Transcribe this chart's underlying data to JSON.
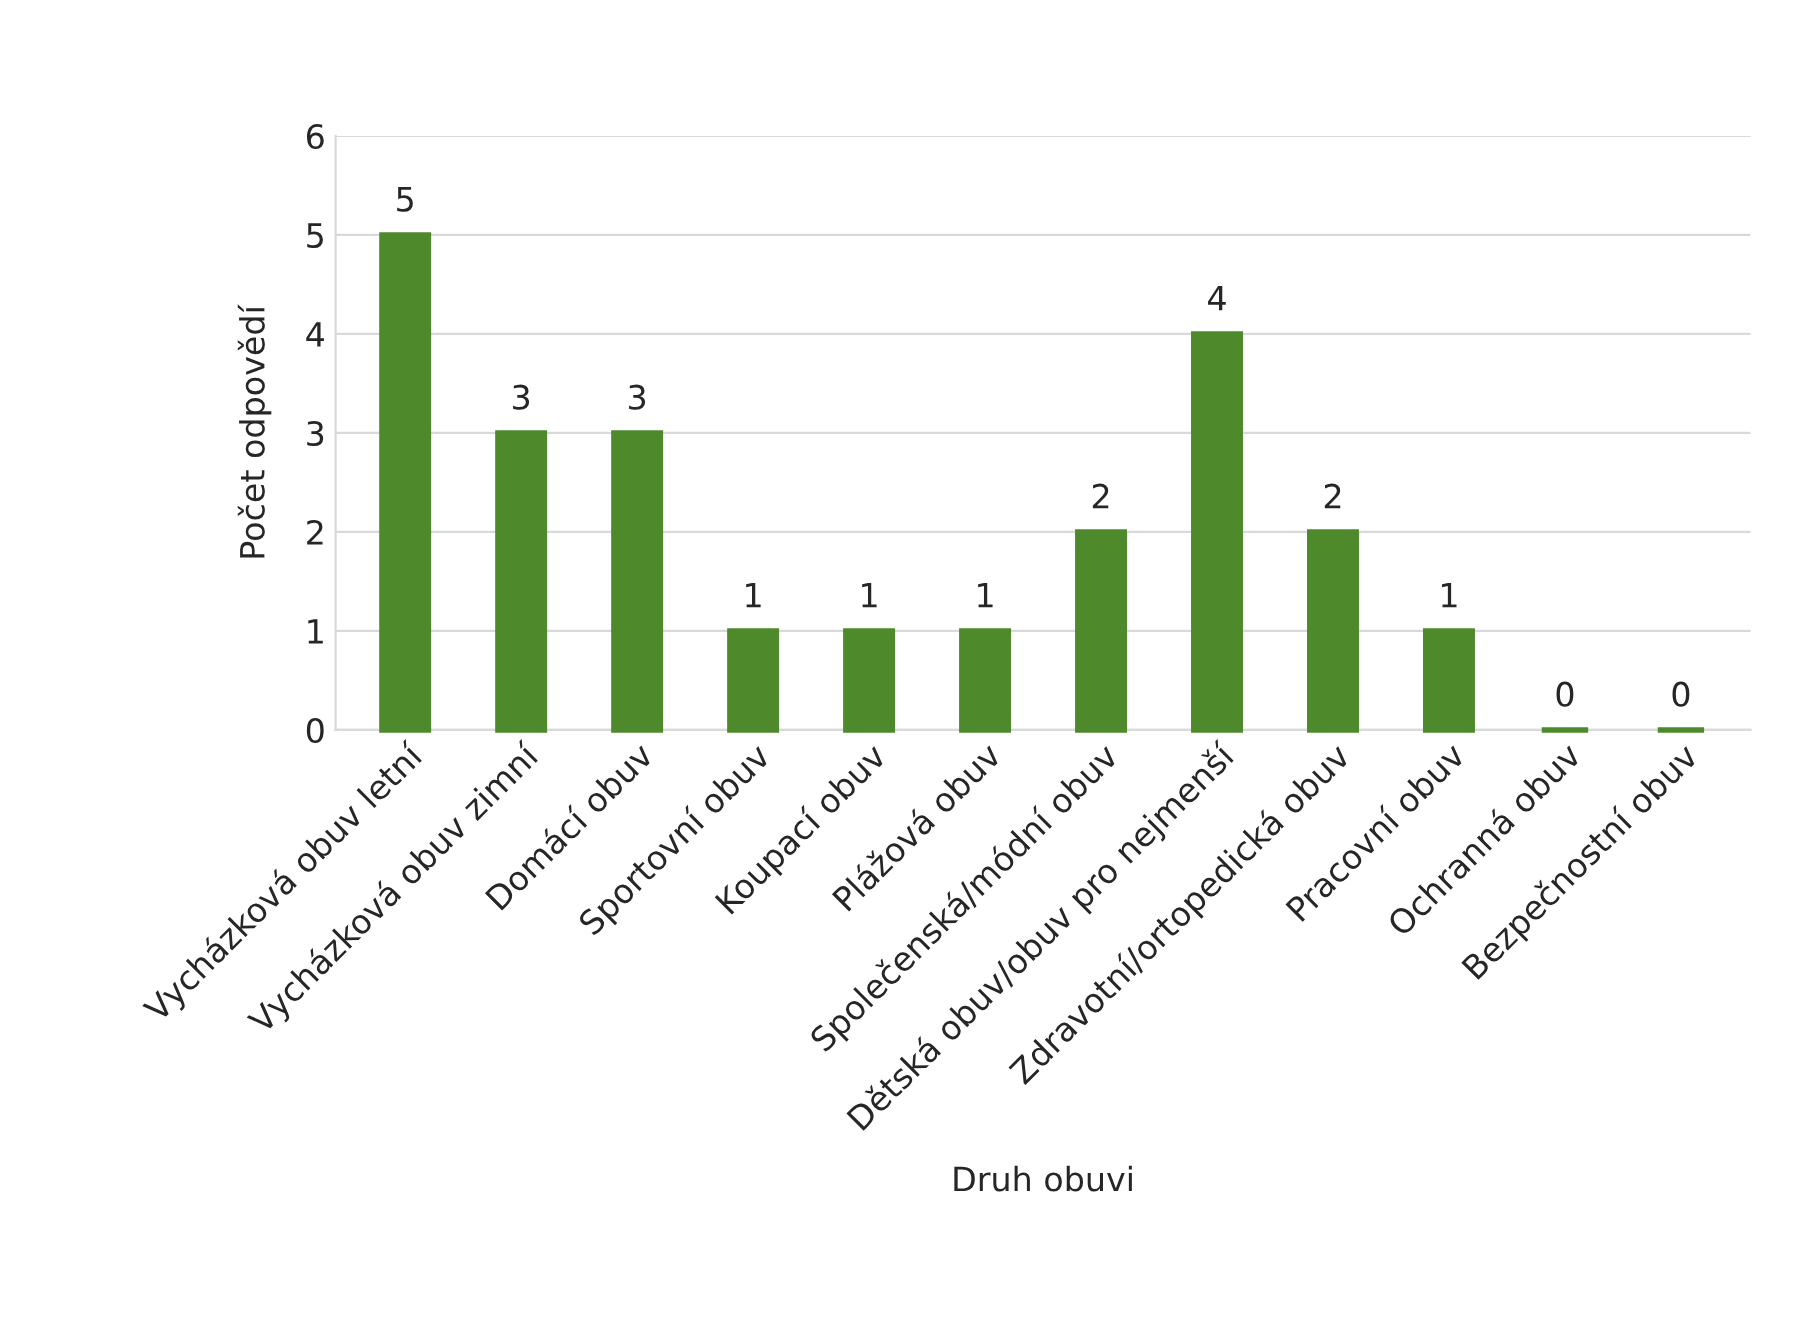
{
  "chart_data": {
    "type": "bar",
    "ylabel": "Počet odpovědí",
    "xlabel": "Druh obuvi",
    "categories": [
      "Vycházková obuv letní",
      "Vycházková obuv zimní",
      "Domácí obuv",
      "Sportovní obuv",
      "Koupací obuv",
      "Plážová obuv",
      "Společenská/módní obuv",
      "Dětská obuv/obuv pro nejmenší",
      "Zdravotní/ortopedická obuv",
      "Pracovní obuv",
      "Ochranná obuv",
      "Bezpečnostní obuv"
    ],
    "values": [
      5,
      3,
      3,
      1,
      1,
      1,
      2,
      4,
      2,
      1,
      0,
      0
    ],
    "color": "#4e8a2b",
    "ylim": [
      0,
      6
    ],
    "yticks": [
      0,
      1,
      2,
      3,
      4,
      5,
      6
    ],
    "grid": "y",
    "data_labels": true
  }
}
